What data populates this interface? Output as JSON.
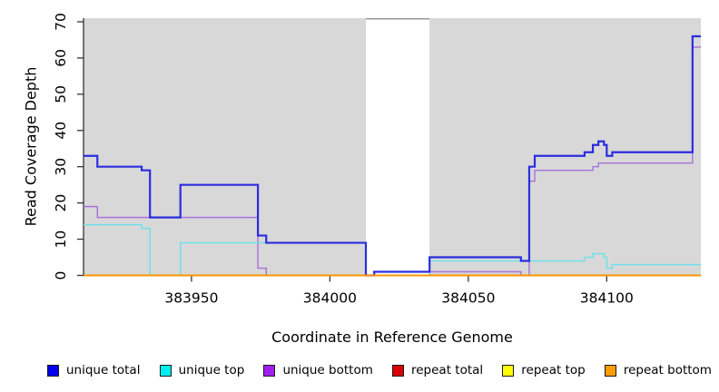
{
  "chart_data": {
    "type": "line",
    "subtype": "step",
    "title": "",
    "xlabel": "Coordinate in Reference Genome",
    "ylabel": "Read Coverage Depth",
    "xlim": [
      383911,
      384134
    ],
    "ylim": [
      0,
      71
    ],
    "x_ticks": [
      383950,
      384000,
      384050,
      384100
    ],
    "y_ticks": [
      0,
      10,
      20,
      30,
      40,
      50,
      60,
      70
    ],
    "panel_color": "#d8d8d8",
    "panel_top_border_color": "#999999",
    "axis_color": "#333333",
    "text_color": "#000000",
    "grid": false,
    "legend_position": "bottom",
    "gap_region": {
      "from": 384013,
      "to": 384036,
      "color": "#ffffff"
    },
    "draw_order": [
      3,
      4,
      2,
      1,
      0,
      5
    ],
    "series": [
      {
        "name": "unique total",
        "legend_color": "#0000ee",
        "line_color": "#2c2cdf",
        "line_width": 2.2,
        "steps": [
          [
            383911,
            33
          ],
          [
            383916,
            30
          ],
          [
            383932,
            29
          ],
          [
            383935,
            16
          ],
          [
            383946,
            25
          ],
          [
            383974,
            11
          ],
          [
            383977,
            9
          ],
          [
            384013,
            0
          ],
          [
            384016,
            1
          ],
          [
            384036,
            5
          ],
          [
            384069,
            4
          ],
          [
            384072,
            30
          ],
          [
            384074,
            33
          ],
          [
            384092,
            34
          ],
          [
            384095,
            36
          ],
          [
            384097,
            37
          ],
          [
            384099,
            36
          ],
          [
            384100,
            33
          ],
          [
            384102,
            34
          ],
          [
            384131,
            66
          ],
          [
            384134,
            66
          ]
        ]
      },
      {
        "name": "unique top",
        "legend_color": "#00eeee",
        "line_color": "#67e2e9",
        "line_width": 1.4,
        "steps": [
          [
            383911,
            14
          ],
          [
            383932,
            13
          ],
          [
            383935,
            0
          ],
          [
            383946,
            9
          ],
          [
            384013,
            0
          ],
          [
            384036,
            4
          ],
          [
            384092,
            5
          ],
          [
            384095,
            6
          ],
          [
            384099,
            5
          ],
          [
            384100,
            2
          ],
          [
            384102,
            3
          ],
          [
            384134,
            3
          ]
        ]
      },
      {
        "name": "unique bottom",
        "legend_color": "#a020f0",
        "line_color": "#a671dc",
        "line_width": 1.4,
        "steps": [
          [
            383911,
            19
          ],
          [
            383916,
            16
          ],
          [
            383974,
            2
          ],
          [
            383977,
            0
          ],
          [
            384016,
            1
          ],
          [
            384069,
            0
          ],
          [
            384072,
            26
          ],
          [
            384074,
            29
          ],
          [
            384095,
            30
          ],
          [
            384097,
            31
          ],
          [
            384131,
            63
          ],
          [
            384134,
            63
          ]
        ]
      },
      {
        "name": "repeat total",
        "legend_color": "#dd0000",
        "line_color": "#dd2222",
        "line_width": 1.4,
        "steps": [
          [
            383911,
            0
          ],
          [
            384134,
            0
          ]
        ]
      },
      {
        "name": "repeat top",
        "legend_color": "#ffff00",
        "line_color": "#f0f000",
        "line_width": 1.4,
        "steps": [
          [
            383911,
            0
          ],
          [
            384134,
            0
          ]
        ]
      },
      {
        "name": "repeat bottom",
        "legend_color": "#ff9d00",
        "line_color": "#ff9500",
        "line_width": 2.0,
        "steps": [
          [
            383911,
            0
          ],
          [
            384134,
            0
          ]
        ]
      }
    ]
  }
}
